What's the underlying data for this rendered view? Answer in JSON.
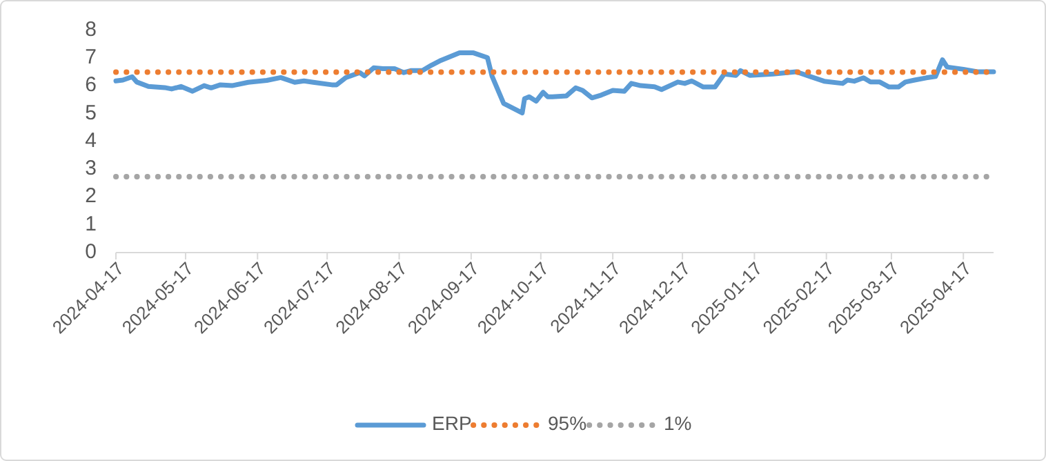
{
  "chart_data": {
    "type": "line",
    "xlim": [
      "2024-04-17",
      "2025-04-30"
    ],
    "xticks": [
      "2024-04-17",
      "2024-05-17",
      "2024-06-17",
      "2024-07-17",
      "2024-08-17",
      "2024-09-17",
      "2024-10-17",
      "2024-11-17",
      "2024-12-17",
      "2025-01-17",
      "2025-02-17",
      "2025-03-17",
      "2025-04-17"
    ],
    "ylim": [
      0,
      8
    ],
    "yticks": [
      0,
      1,
      2,
      3,
      4,
      5,
      6,
      7,
      8
    ],
    "grid": false,
    "legend": "bottom",
    "marker": "none",
    "series": [
      {
        "name": "ERP",
        "color": "#5b9bd5",
        "line_style": "solid",
        "x": [
          "2024-04-17",
          "2024-04-20",
          "2024-04-24",
          "2024-04-26",
          "2024-05-01",
          "2024-05-08",
          "2024-05-11",
          "2024-05-15",
          "2024-05-20",
          "2024-05-25",
          "2024-05-28",
          "2024-06-01",
          "2024-06-06",
          "2024-06-13",
          "2024-06-21",
          "2024-06-27",
          "2024-07-03",
          "2024-07-07",
          "2024-07-11",
          "2024-07-19",
          "2024-07-21",
          "2024-07-25",
          "2024-07-31",
          "2024-08-02",
          "2024-08-06",
          "2024-08-10",
          "2024-08-15",
          "2024-08-19",
          "2024-08-22",
          "2024-08-27",
          "2024-08-31",
          "2024-09-04",
          "2024-09-12",
          "2024-09-18",
          "2024-09-24",
          "2024-09-26",
          "2024-09-29",
          "2024-10-01",
          "2024-10-09",
          "2024-10-10",
          "2024-10-12",
          "2024-10-15",
          "2024-10-18",
          "2024-10-20",
          "2024-10-22",
          "2024-10-28",
          "2024-11-01",
          "2024-11-04",
          "2024-11-08",
          "2024-11-12",
          "2024-11-17",
          "2024-11-22",
          "2024-11-25",
          "2024-11-29",
          "2024-12-05",
          "2024-12-08",
          "2024-12-15",
          "2024-12-18",
          "2024-12-21",
          "2024-12-26",
          "2024-12-31",
          "2025-01-04",
          "2025-01-09",
          "2025-01-11",
          "2025-01-15",
          "2025-01-25",
          "2025-02-04",
          "2025-02-10",
          "2025-02-16",
          "2025-02-24",
          "2025-02-26",
          "2025-03-01",
          "2025-03-05",
          "2025-03-08",
          "2025-03-12",
          "2025-03-16",
          "2025-03-20",
          "2025-03-23",
          "2025-03-27",
          "2025-04-01",
          "2025-04-05",
          "2025-04-08",
          "2025-04-10",
          "2025-04-17",
          "2025-04-23",
          "2025-04-30"
        ],
        "values": [
          6.18,
          6.21,
          6.33,
          6.14,
          5.98,
          5.94,
          5.89,
          5.98,
          5.81,
          6.01,
          5.93,
          6.04,
          6.01,
          6.13,
          6.2,
          6.3,
          6.13,
          6.18,
          6.13,
          6.04,
          6.04,
          6.3,
          6.48,
          6.36,
          6.65,
          6.62,
          6.62,
          6.48,
          6.55,
          6.55,
          6.75,
          6.92,
          7.19,
          7.19,
          7.02,
          6.35,
          5.76,
          5.37,
          5.03,
          5.54,
          5.61,
          5.45,
          5.77,
          5.61,
          5.61,
          5.64,
          5.93,
          5.84,
          5.57,
          5.67,
          5.84,
          5.81,
          6.09,
          6.01,
          5.97,
          5.87,
          6.14,
          6.09,
          6.18,
          5.96,
          5.96,
          6.43,
          6.38,
          6.55,
          6.38,
          6.43,
          6.51,
          6.34,
          6.17,
          6.09,
          6.21,
          6.17,
          6.29,
          6.14,
          6.14,
          5.96,
          5.96,
          6.14,
          6.21,
          6.29,
          6.34,
          6.94,
          6.68,
          6.6,
          6.51,
          6.51
        ]
      },
      {
        "name": "95%",
        "color": "#ed7d31",
        "line_style": "dotted",
        "x": [
          "2024-04-17",
          "2025-04-30"
        ],
        "values": [
          6.5,
          6.5
        ]
      },
      {
        "name": "1%",
        "color": "#a5a5a5",
        "line_style": "dotted",
        "x": [
          "2024-04-17",
          "2025-04-30"
        ],
        "values": [
          2.73,
          2.73
        ]
      }
    ]
  }
}
